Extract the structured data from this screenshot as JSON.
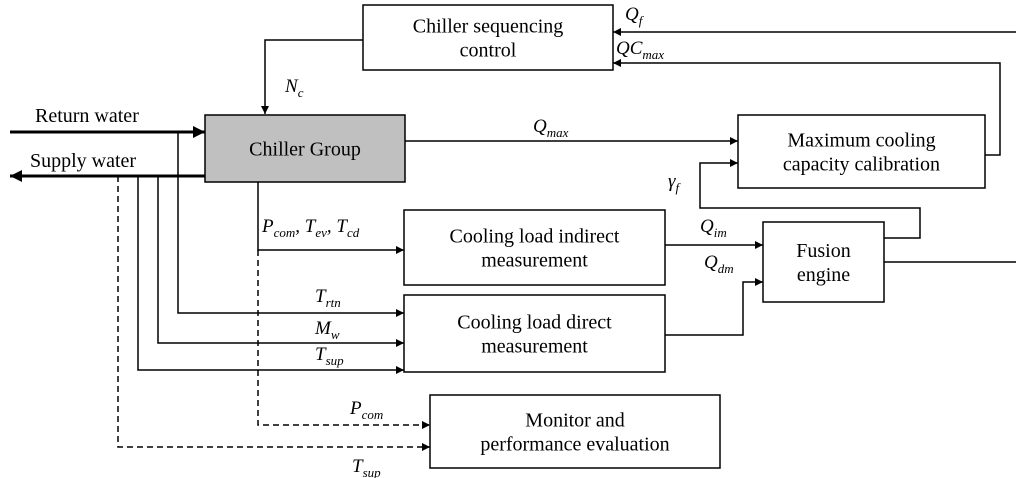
{
  "blocks": [
    {
      "lines": [
        "Chiller sequencing",
        "control"
      ]
    },
    {
      "lines": [
        "Chiller Group"
      ]
    },
    {
      "lines": [
        "Maximum cooling",
        "capacity calibration"
      ]
    },
    {
      "lines": [
        "Cooling load indirect",
        "measurement"
      ]
    },
    {
      "lines": [
        "Fusion",
        "engine"
      ]
    },
    {
      "lines": [
        "Cooling load direct",
        "measurement"
      ]
    },
    {
      "lines": [
        "Monitor and",
        "performance evaluation"
      ]
    }
  ],
  "flows": [
    "Return water",
    "Supply water"
  ],
  "signals": [
    {
      "label": [
        {
          "base": "Q",
          "sub": "f"
        }
      ]
    },
    {
      "label": [
        {
          "base": "QC",
          "sub": "max"
        }
      ]
    },
    {
      "label": [
        {
          "base": "N",
          "sub": "c"
        }
      ]
    },
    {
      "label": [
        {
          "base": "Q",
          "sub": "max"
        }
      ]
    },
    {
      "label": [
        {
          "base": "γ",
          "sub": "f"
        }
      ]
    },
    {
      "label": [
        {
          "base": "P",
          "sub": "com"
        },
        {
          "base": ", T",
          "sub": "ev"
        },
        {
          "base": ", T",
          "sub": "cd"
        }
      ]
    },
    {
      "label": [
        {
          "base": "P",
          "sub": "com"
        }
      ]
    },
    {
      "label": [
        {
          "base": "Q",
          "sub": "im"
        }
      ]
    },
    {
      "label": [
        {
          "base": "Q",
          "sub": "dm"
        }
      ]
    },
    {
      "label": [
        {
          "base": "T",
          "sub": "rtn"
        }
      ]
    },
    {
      "label": [
        {
          "base": "M",
          "sub": "w"
        }
      ]
    },
    {
      "label": [
        {
          "base": "T",
          "sub": "sup"
        }
      ]
    },
    {
      "label": [
        {
          "base": "T",
          "sub": "sup"
        }
      ]
    }
  ]
}
